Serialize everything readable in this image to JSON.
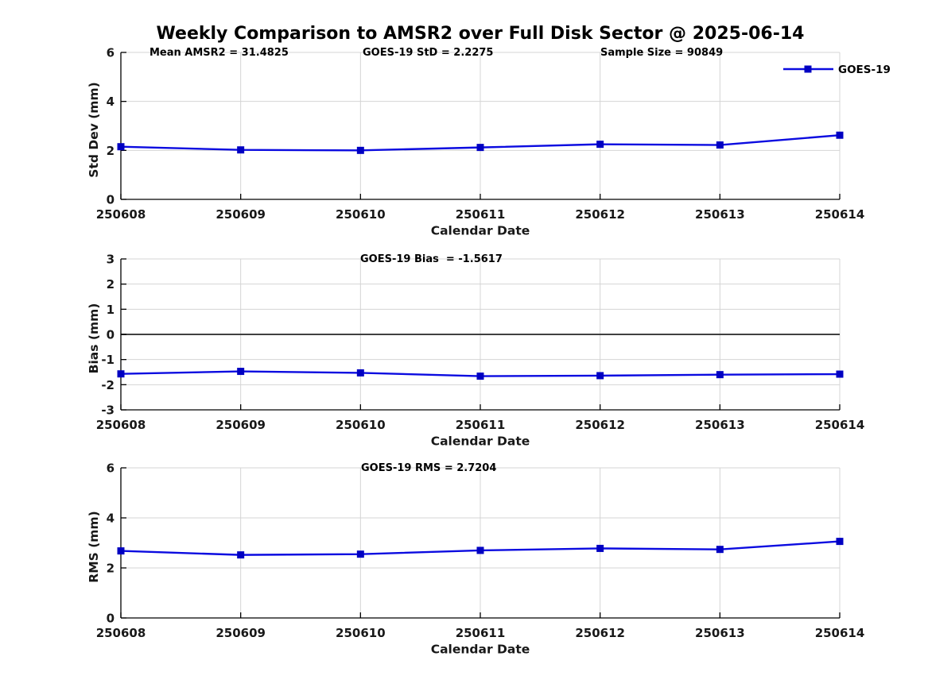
{
  "title": "Weekly Comparison to AMSR2 over Full Disk Sector @ 2025-06-14",
  "colors": {
    "line": "#0b0be0",
    "marker": "#0000c2",
    "grid": "#d4d4d4",
    "zero_line": "#404040",
    "axis": "#000000",
    "text": "#000000",
    "background": "#ffffff"
  },
  "chart_data": [
    {
      "type": "line",
      "ylabel": "Std Dev (mm)",
      "xlabel": "Calendar Date",
      "categories": [
        "250608",
        "250609",
        "250610",
        "250611",
        "250612",
        "250613",
        "250614"
      ],
      "series": [
        {
          "name": "GOES-19",
          "values": [
            2.15,
            2.02,
            2.0,
            2.12,
            2.25,
            2.22,
            2.62
          ]
        }
      ],
      "ylim": [
        0,
        6
      ],
      "yticks": [
        0,
        2,
        4,
        6
      ],
      "grid": true,
      "legend": {
        "label": "GOES-19",
        "position": "top-right"
      },
      "annotations": [
        {
          "text": "Mean AMSR2 = 31.4825",
          "x": 188
        },
        {
          "text": "GOES-19 StD = 2.2275",
          "x": 456
        },
        {
          "text": "Sample Size = 90849",
          "x": 755
        }
      ]
    },
    {
      "type": "line",
      "ylabel": "Bias (mm)",
      "xlabel": "Calendar Date",
      "categories": [
        "250608",
        "250609",
        "250610",
        "250611",
        "250612",
        "250613",
        "250614"
      ],
      "series": [
        {
          "name": "GOES-19",
          "values": [
            -1.57,
            -1.47,
            -1.53,
            -1.66,
            -1.64,
            -1.6,
            -1.58
          ]
        }
      ],
      "ylim": [
        -3,
        3
      ],
      "yticks": [
        -3,
        -2,
        -1,
        0,
        1,
        2,
        3
      ],
      "grid": true,
      "zero_line": true,
      "annotations": [
        {
          "text": "GOES-19 Bias  = -1.5617",
          "x": 453
        }
      ]
    },
    {
      "type": "line",
      "ylabel": "RMS (mm)",
      "xlabel": "Calendar Date",
      "categories": [
        "250608",
        "250609",
        "250610",
        "250611",
        "250612",
        "250613",
        "250614"
      ],
      "series": [
        {
          "name": "GOES-19",
          "values": [
            2.68,
            2.52,
            2.55,
            2.7,
            2.78,
            2.74,
            3.06
          ]
        }
      ],
      "ylim": [
        0,
        6
      ],
      "yticks": [
        0,
        2,
        4,
        6
      ],
      "grid": true,
      "annotations": [
        {
          "text": "GOES-19 RMS = 2.7204",
          "x": 454
        }
      ]
    }
  ]
}
